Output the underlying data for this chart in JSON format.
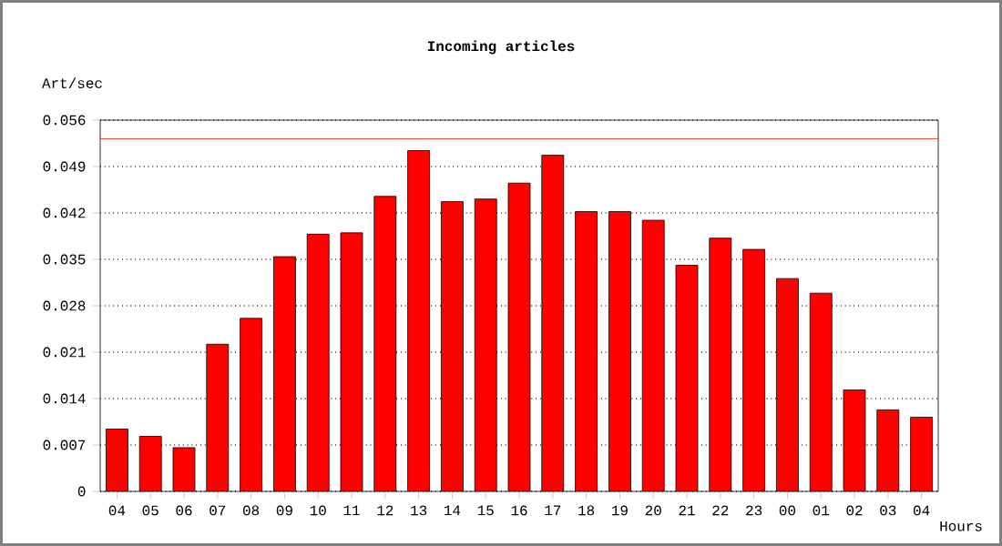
{
  "chart_data": {
    "type": "bar",
    "title": "Incoming articles",
    "ylabel": "Art/sec",
    "xlabel": "Hours",
    "categories": [
      "04",
      "05",
      "06",
      "07",
      "08",
      "09",
      "10",
      "11",
      "12",
      "13",
      "14",
      "15",
      "16",
      "17",
      "18",
      "19",
      "20",
      "21",
      "22",
      "23",
      "00",
      "01",
      "02",
      "03",
      "04"
    ],
    "values": [
      0.0094,
      0.0083,
      0.0066,
      0.0222,
      0.0261,
      0.0354,
      0.0388,
      0.039,
      0.0445,
      0.0514,
      0.0437,
      0.0441,
      0.0465,
      0.0507,
      0.0422,
      0.0422,
      0.0409,
      0.0341,
      0.0382,
      0.0365,
      0.0321,
      0.0299,
      0.0153,
      0.0123,
      0.0112
    ],
    "color": "#ff0000",
    "ylim": [
      0,
      0.056
    ],
    "yticks": [
      0,
      0.007,
      0.014,
      0.021,
      0.028,
      0.035,
      0.042,
      0.049,
      0.056
    ],
    "grid": "y",
    "ref_lines": [
      {
        "axis": "y",
        "value": 0.0532,
        "color": "#ff0000",
        "line_style": "solid"
      }
    ]
  }
}
